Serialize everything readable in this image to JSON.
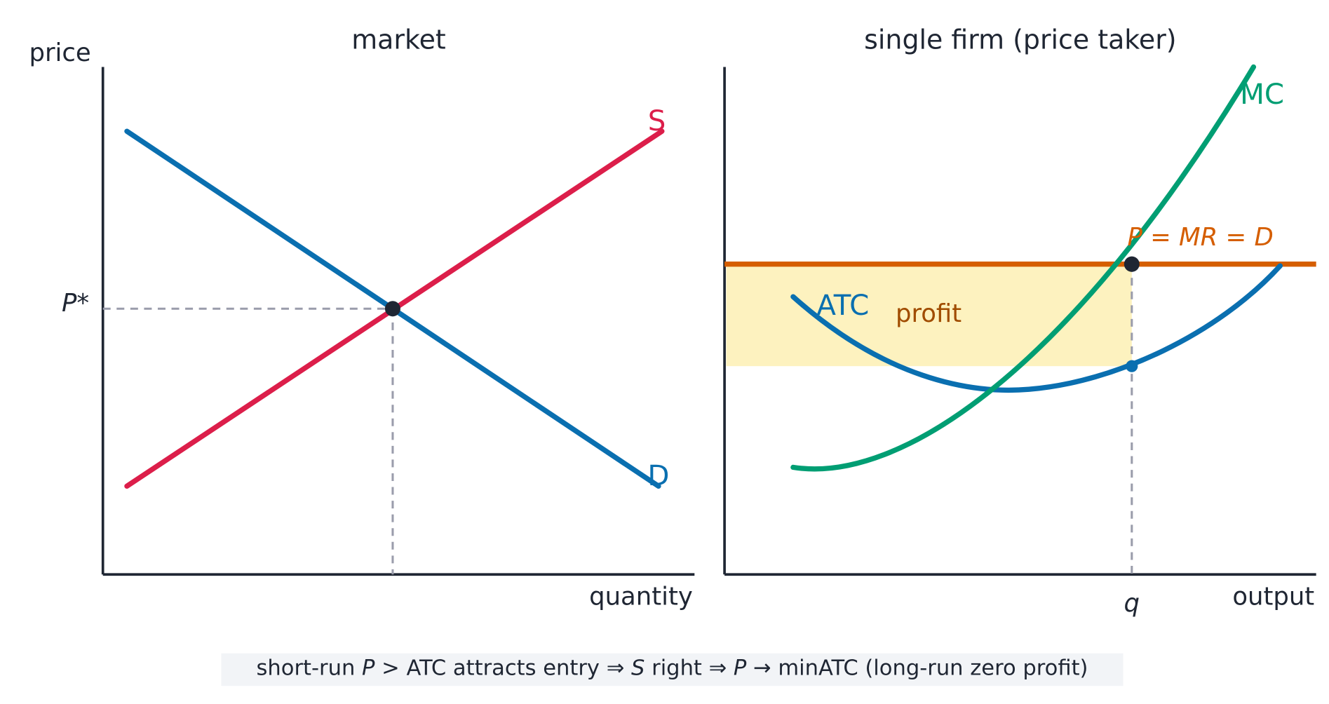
{
  "left_panel": {
    "title": "market",
    "y_axis_label": "price",
    "x_axis_label": "quantity",
    "supply_label": "S",
    "demand_label": "D",
    "price_label": "P*"
  },
  "right_panel": {
    "title": "single firm (price taker)",
    "x_axis_label": "output",
    "mc_label": "MC",
    "atc_label": "ATC",
    "price_line_label": "P = MR = D",
    "profit_label": "profit",
    "quantity_label": "q"
  },
  "caption": [
    "short-run ",
    "P",
    " > ATC attracts entry ⇒ ",
    "S",
    " right ⇒ ",
    "P",
    " → minATC (long-run zero profit)"
  ]
}
